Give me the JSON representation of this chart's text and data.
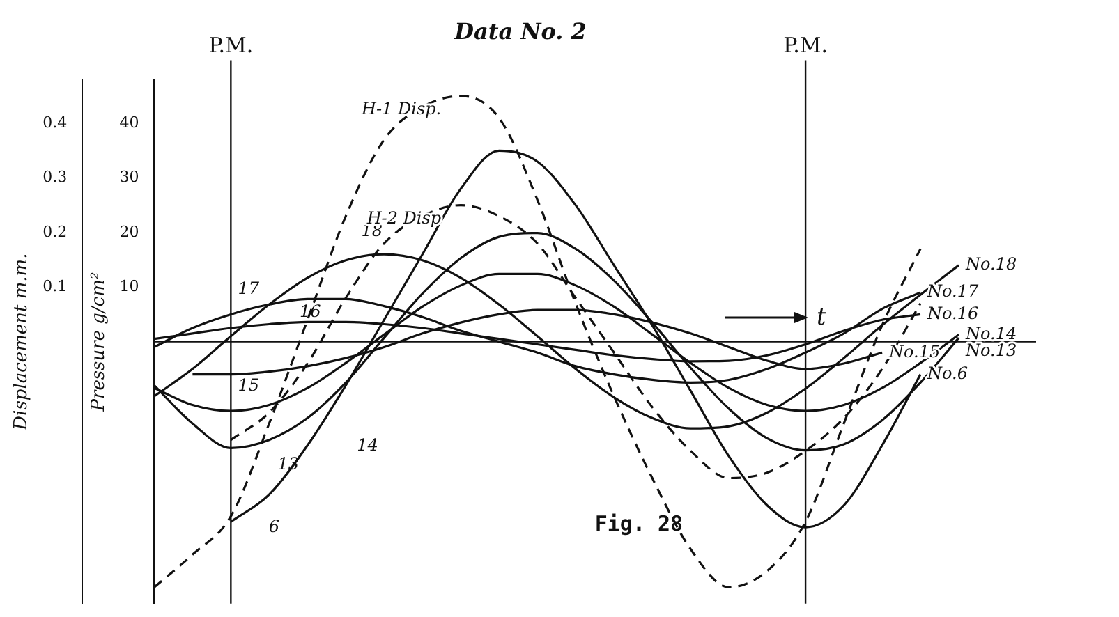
{
  "chart_data": {
    "type": "line",
    "title": "Data No. 2",
    "xlabel": "t",
    "ylabel": "Pressure g/cm²",
    "y2label": "Displacement m.m.",
    "categories": [
      null,
      null,
      null,
      null,
      null,
      null,
      null,
      null,
      null,
      null,
      null,
      null,
      null,
      null,
      null,
      null,
      null,
      null,
      null,
      null,
      null,
      null,
      null,
      null
    ],
    "ylim": [
      -48,
      48
    ],
    "yticks": [
      10,
      20,
      30,
      40
    ],
    "y2lim": [
      -0.48,
      0.48
    ],
    "y2ticks": [
      0.1,
      0.2,
      0.3,
      0.4
    ],
    "grid": false,
    "legend": false,
    "marker": "none",
    "line_style": "solid",
    "series": [
      {
        "name": "H-1 Disp.",
        "color": "#111111",
        "axis": "y2",
        "line_style": "dashed",
        "values": [
          -0.45,
          -0.39,
          -0.32,
          -0.15,
          0.04,
          0.23,
          0.37,
          0.43,
          0.45,
          0.41,
          0.26,
          0.07,
          -0.1,
          -0.25,
          -0.38,
          -0.45,
          -0.42,
          -0.33,
          -0.15,
          0.03,
          0.17,
          null,
          null,
          null
        ]
      },
      {
        "name": "H-2 Disp",
        "color": "#111111",
        "axis": "y2",
        "line_style": "dashed",
        "values": [
          null,
          null,
          -0.18,
          -0.13,
          -0.04,
          0.08,
          0.18,
          0.23,
          0.25,
          0.23,
          0.18,
          0.08,
          -0.02,
          -0.12,
          -0.2,
          -0.25,
          -0.24,
          -0.2,
          -0.14,
          -0.05,
          0.07,
          null,
          null,
          null
        ]
      },
      {
        "name": "No.6",
        "color": "#111111",
        "values": [
          null,
          null,
          -33,
          -28,
          -19,
          -8,
          4,
          16,
          28,
          35,
          33,
          25,
          14,
          3,
          -9,
          -21,
          -30,
          -34,
          -30,
          -19,
          -6,
          null,
          null,
          null
        ]
      },
      {
        "name": "No.13",
        "color": "#111111",
        "values": [
          -8,
          -15,
          -19.5,
          -18,
          -14,
          -7.5,
          0.7,
          8.8,
          15.3,
          19.2,
          19.9,
          17,
          11.2,
          3.5,
          -4.8,
          -12.3,
          -17.7,
          -19.9,
          -18.8,
          -14.4,
          -7.5,
          0.7,
          null,
          null
        ]
      },
      {
        "name": "No.14",
        "color": "#111111",
        "values": [
          -8.5,
          -11.6,
          -12.7,
          -11.6,
          -8.5,
          -3.9,
          1.3,
          6.4,
          10.3,
          12.4,
          12.4,
          10.3,
          6.4,
          1.3,
          -3.9,
          -8.5,
          -11.6,
          -12.7,
          -11.6,
          -8.5,
          -3.9,
          1.3,
          null,
          null
        ]
      },
      {
        "name": "No.15",
        "color": "#111111",
        "values": [
          null,
          -6,
          -6,
          -5.5,
          -4.5,
          -3,
          -1,
          1.5,
          3.5,
          5,
          5.8,
          5.8,
          5,
          3.5,
          1.5,
          -1,
          -3.5,
          -5,
          -4,
          -2,
          null,
          null,
          null,
          null
        ]
      },
      {
        "name": "No.16",
        "color": "#111111",
        "values": [
          0.5,
          1.5,
          2.5,
          3.2,
          3.6,
          3.6,
          3.2,
          2.5,
          1.5,
          0.5,
          -0.5,
          -1.5,
          -2.5,
          -3.2,
          -3.6,
          -3.5,
          -2.5,
          -0.5,
          2,
          4,
          5,
          null,
          null,
          null
        ]
      },
      {
        "name": "No.17",
        "color": "#111111",
        "values": [
          -1,
          2.5,
          5,
          6.8,
          7.8,
          7.8,
          6.5,
          4.5,
          2,
          0,
          -2,
          -4.5,
          -6,
          -7,
          -7.5,
          -7,
          -5,
          -2,
          1.5,
          6,
          9,
          null,
          null,
          null
        ]
      },
      {
        "name": "No.18",
        "color": "#111111",
        "values": [
          -10,
          -5,
          1,
          6.8,
          11.7,
          14.9,
          16,
          14.9,
          11.7,
          6.8,
          1,
          -5,
          -10.2,
          -14,
          -15.9,
          -15.5,
          -13,
          -8.6,
          -3,
          3,
          8.6,
          14,
          null,
          null
        ]
      }
    ],
    "annotations": [
      "17",
      "16",
      "15",
      "14",
      "13",
      "6",
      "18",
      "P.M.",
      "P.M.",
      "Fig. 28"
    ]
  }
}
